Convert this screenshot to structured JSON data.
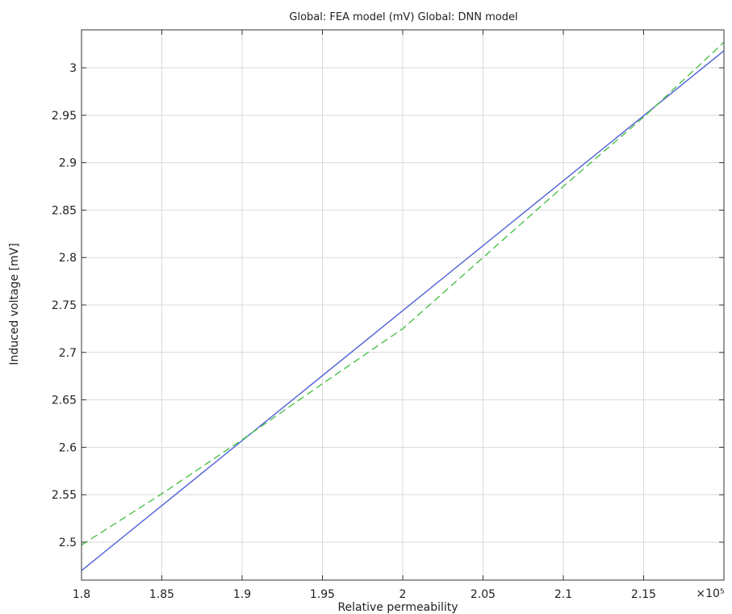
{
  "chart_data": {
    "type": "line",
    "title": "Global: FEA model (mV)  Global: DNN model",
    "xlabel": "Relative permeability",
    "ylabel": "Induced voltage [mV]",
    "x_exponent_label": "×10⁵",
    "xlim": [
      1.8,
      2.2
    ],
    "ylim": [
      2.46,
      3.04
    ],
    "x_ticks": [
      1.8,
      1.85,
      1.9,
      1.95,
      2.0,
      2.05,
      2.1,
      2.15
    ],
    "x_tick_labels": [
      "1.8",
      "1.85",
      "1.9",
      "1.95",
      "2",
      "2.05",
      "2.1",
      "2.15"
    ],
    "y_ticks": [
      2.5,
      2.55,
      2.6,
      2.65,
      2.7,
      2.75,
      2.8,
      2.85,
      2.9,
      2.95,
      3.0
    ],
    "y_tick_labels": [
      "2.5",
      "2.55",
      "2.6",
      "2.65",
      "2.7",
      "2.75",
      "2.8",
      "2.85",
      "2.9",
      "2.95",
      "3"
    ],
    "grid": true,
    "series": [
      {
        "name": "Global: FEA model (mV)",
        "color": "#4f5fd6",
        "style": "solid",
        "x": [
          1.8,
          2.2
        ],
        "y": [
          2.47,
          3.018
        ]
      },
      {
        "name": "Global: DNN model",
        "color": "#4cc24a",
        "style": "dashed",
        "x": [
          1.8,
          1.85,
          1.9,
          1.95,
          2.0,
          2.05,
          2.1,
          2.15,
          2.2
        ],
        "y": [
          2.497,
          2.551,
          2.608,
          2.667,
          2.725,
          2.8,
          2.875,
          2.948,
          3.027
        ]
      }
    ]
  }
}
